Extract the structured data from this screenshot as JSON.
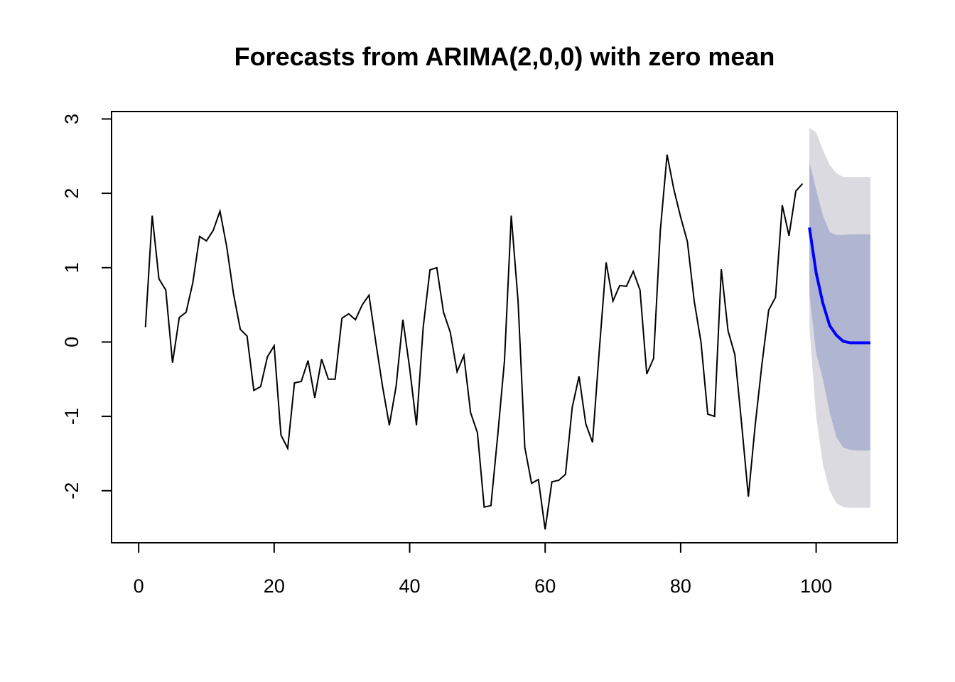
{
  "chart_data": {
    "type": "line",
    "title": "Forecasts from ARIMA(2,0,0) with zero mean",
    "xlabel": "",
    "ylabel": "",
    "xlim": [
      -4,
      112
    ],
    "ylim": [
      -2.7,
      3.1
    ],
    "x_ticks": [
      0,
      20,
      40,
      60,
      80,
      100
    ],
    "y_ticks": [
      -2,
      -1,
      0,
      1,
      2,
      3
    ],
    "x_tick_labels": [
      "0",
      "20",
      "40",
      "60",
      "80",
      "100"
    ],
    "y_tick_labels": [
      "-2",
      "-1",
      "0",
      "1",
      "2",
      "3"
    ],
    "grid": false,
    "colors": {
      "observed": "#000000",
      "forecast": "#0000ff",
      "band_80": "#b0b5d1",
      "band_95": "#dadae0",
      "axis": "#000000"
    },
    "observed": {
      "x_start": 1,
      "values": [
        0.2,
        1.7,
        0.85,
        0.7,
        -0.28,
        0.33,
        0.4,
        0.8,
        1.42,
        1.36,
        1.5,
        1.76,
        1.28,
        0.65,
        0.17,
        0.08,
        -0.65,
        -0.6,
        -0.2,
        -0.05,
        -1.25,
        -1.43,
        -0.55,
        -0.53,
        -0.25,
        -0.75,
        -0.23,
        -0.5,
        -0.5,
        0.32,
        0.38,
        0.3,
        0.5,
        0.63,
        0.0,
        -0.6,
        -1.12,
        -0.6,
        0.3,
        -0.35,
        -1.12,
        0.2,
        0.97,
        1.0,
        0.4,
        0.13,
        -0.4,
        -0.18,
        -0.95,
        -1.22,
        -2.22,
        -2.2,
        -1.25,
        -0.25,
        1.7,
        0.55,
        -1.42,
        -1.9,
        -1.85,
        -2.52,
        -1.88,
        -1.86,
        -1.78,
        -0.88,
        -0.46,
        -1.1,
        -1.35,
        -0.1,
        1.07,
        0.55,
        0.76,
        0.75,
        0.95,
        0.7,
        -0.43,
        -0.22,
        1.5,
        2.52,
        2.05,
        1.68,
        1.35,
        0.55,
        0.0,
        -0.97,
        -1.0,
        0.98,
        0.15,
        -0.17,
        -1.1,
        -2.08,
        -1.12,
        -0.3,
        0.43,
        0.6,
        1.84,
        1.43,
        2.03,
        2.13
      ]
    },
    "forecast": {
      "x_start": 99,
      "values": [
        1.54,
        0.93,
        0.52,
        0.22,
        0.09,
        0.01,
        -0.01,
        -0.01,
        -0.01,
        -0.01
      ],
      "lower_80": [
        0.65,
        -0.15,
        -0.5,
        -0.95,
        -1.28,
        -1.42,
        -1.45,
        -1.46,
        -1.46,
        -1.46
      ],
      "upper_80": [
        2.42,
        2.05,
        1.7,
        1.48,
        1.44,
        1.44,
        1.45,
        1.45,
        1.45,
        1.45
      ],
      "lower_95": [
        0.2,
        -1.0,
        -1.65,
        -2.0,
        -2.17,
        -2.22,
        -2.23,
        -2.23,
        -2.23,
        -2.23
      ],
      "upper_95": [
        2.88,
        2.82,
        2.58,
        2.38,
        2.27,
        2.22,
        2.22,
        2.22,
        2.22,
        2.22
      ]
    }
  }
}
